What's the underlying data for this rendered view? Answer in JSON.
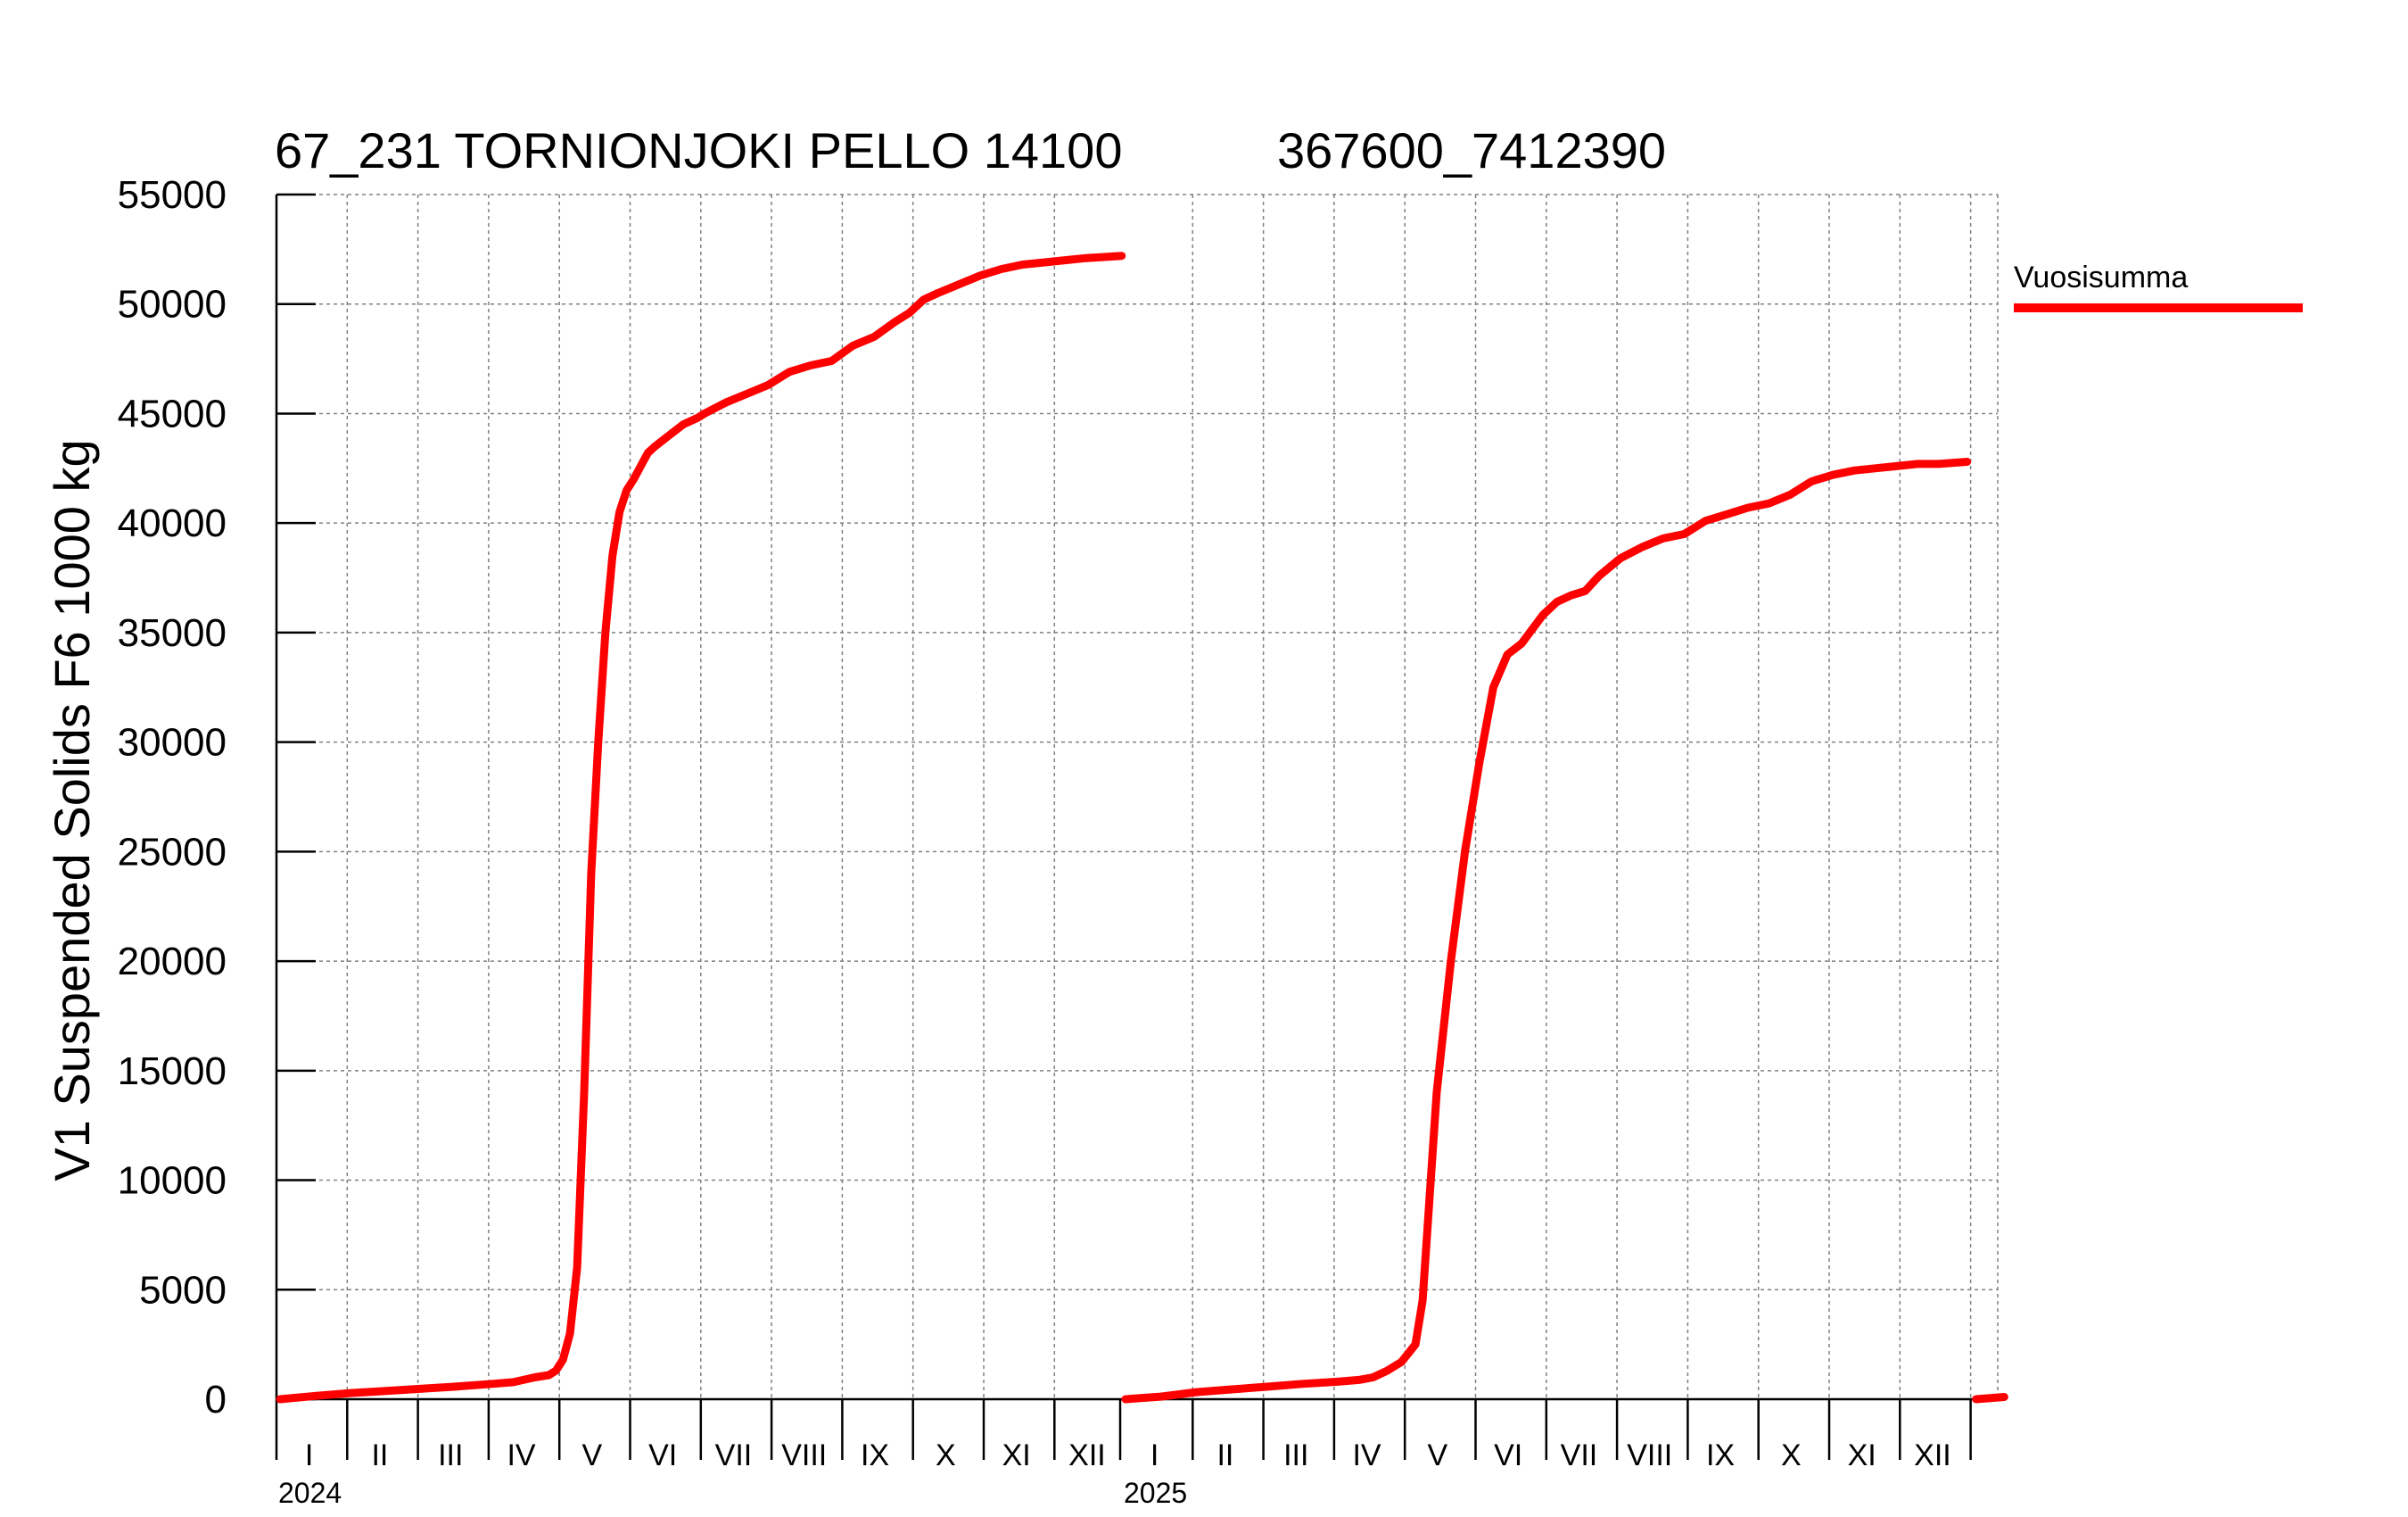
{
  "chart_data": {
    "type": "line",
    "title_left": "67_231 TORNIONJOKI PELLO 14100",
    "title_right": "367600_7412390",
    "ylabel": "V1 Suspended Solids F6 1000 kg",
    "ylim": [
      0,
      55000
    ],
    "yticks": [
      "0",
      "5000",
      "10000",
      "15000",
      "20000",
      "25000",
      "30000",
      "35000",
      "40000",
      "45000",
      "50000",
      "55000"
    ],
    "grid": true,
    "legend_position": "right",
    "years": [
      {
        "label": "2024",
        "months": [
          "I",
          "II",
          "III",
          "IV",
          "V",
          "VI",
          "VII",
          "VIII",
          "IX",
          "X",
          "XI",
          "XII"
        ]
      },
      {
        "label": "2025",
        "months": [
          "I",
          "II",
          "III",
          "IV",
          "V",
          "VI",
          "VII",
          "VIII",
          "IX",
          "X",
          "XI",
          "XII"
        ]
      }
    ],
    "series": [
      {
        "name": "Vuosisumma",
        "color": "#ff0000",
        "segments": [
          {
            "year": "2024",
            "x_month": [
              0.0,
              0.5,
              1.0,
              1.5,
              2.0,
              2.5,
              3.0,
              3.3,
              3.6,
              3.8,
              3.9,
              4.0,
              4.1,
              4.2,
              4.3,
              4.4,
              4.5,
              4.6,
              4.7,
              4.8,
              4.9,
              5.0,
              5.1,
              5.2,
              5.3,
              5.5,
              5.7,
              5.9,
              6.0,
              6.3,
              6.6,
              6.9,
              7.2,
              7.5,
              7.8,
              8.1,
              8.4,
              8.7,
              8.9,
              9.1,
              9.3,
              9.6,
              9.9,
              10.2,
              10.5,
              10.8,
              11.1,
              11.4,
              11.9
            ],
            "y": [
              0,
              150,
              280,
              380,
              480,
              580,
              700,
              780,
              1000,
              1100,
              1300,
              1800,
              3000,
              6000,
              14000,
              24000,
              30000,
              35000,
              38500,
              40500,
              41500,
              42000,
              42600,
              43200,
              43500,
              44000,
              44500,
              44800,
              45000,
              45500,
              45900,
              46300,
              46900,
              47200,
              47400,
              48100,
              48500,
              49200,
              49600,
              50200,
              50500,
              50900,
              51300,
              51600,
              51800,
              51900,
              52000,
              52100,
              52200
            ]
          },
          {
            "year": "2025",
            "x_month": [
              0.0,
              0.5,
              1.0,
              1.5,
              2.0,
              2.5,
              3.0,
              3.3,
              3.5,
              3.7,
              3.9,
              4.0,
              4.1,
              4.2,
              4.4,
              4.6,
              4.8,
              5.0,
              5.2,
              5.4,
              5.6,
              5.9,
              6.1,
              6.3,
              6.5,
              6.7,
              7.0,
              7.3,
              7.6,
              7.9,
              8.2,
              8.5,
              8.8,
              9.1,
              9.4,
              9.7,
              10.0,
              10.3,
              10.6,
              10.9,
              11.2,
              11.5,
              11.9
            ],
            "y": [
              0,
              120,
              320,
              450,
              570,
              700,
              800,
              880,
              1000,
              1300,
              1700,
              2100,
              2500,
              4500,
              14000,
              20000,
              25000,
              29000,
              32500,
              34000,
              34500,
              35800,
              36400,
              36700,
              36900,
              37600,
              38400,
              38900,
              39300,
              39500,
              40100,
              40400,
              40700,
              40900,
              41300,
              41900,
              42200,
              42400,
              42500,
              42600,
              42700,
              42700,
              42800
            ]
          },
          {
            "year": "2026",
            "x_month": [
              0.0,
              0.4
            ],
            "y": [
              0,
              100
            ]
          }
        ]
      }
    ]
  }
}
